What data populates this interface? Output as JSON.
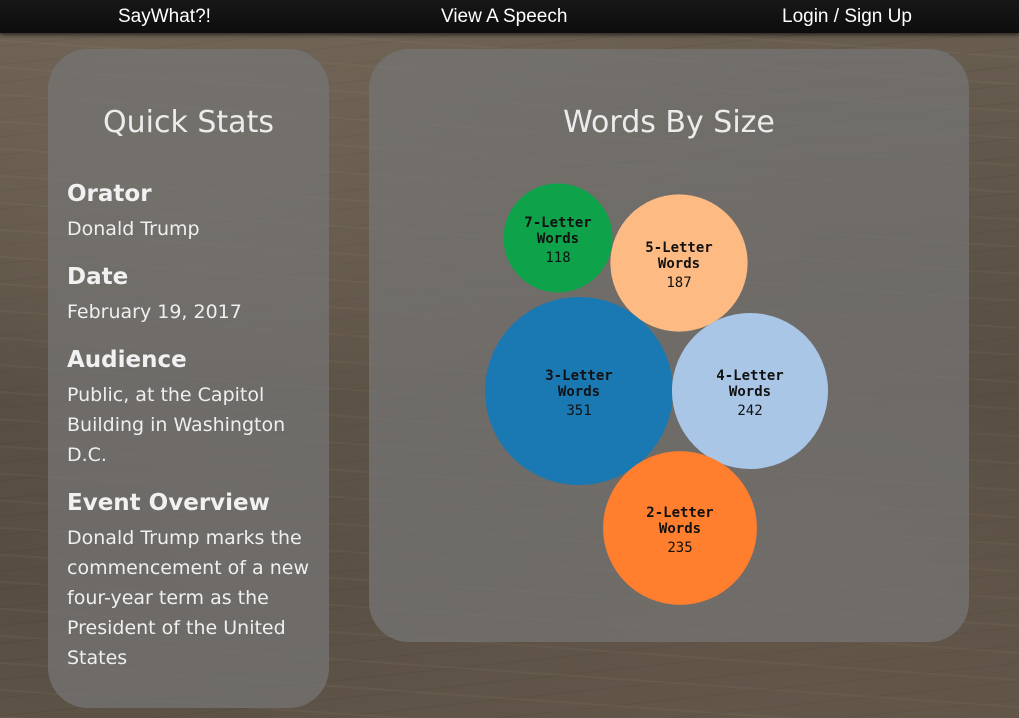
{
  "nav": {
    "brand": "SayWhat?!",
    "view_speech": "View A Speech",
    "login": "Login / Sign Up"
  },
  "stats": {
    "title": "Quick Stats",
    "orator_heading": "Orator",
    "orator": "Donald Trump",
    "date_heading": "Date",
    "date": "February 19, 2017",
    "audience_heading": "Audience",
    "audience": "Public, at the Capitol Building in Washington D.C.",
    "overview_heading": "Event Overview",
    "overview": "Donald Trump marks the commencement of a new four-year term as the President of the United States"
  },
  "chart_title": "Words By Size",
  "chart_data": {
    "type": "bubble",
    "title": "Words By Size",
    "series": [
      {
        "label_line1": "7-Letter",
        "label_line2": "Words",
        "value": 118,
        "color": "#0ea34a"
      },
      {
        "label_line1": "5-Letter",
        "label_line2": "Words",
        "value": 187,
        "color": "#fdbb83"
      },
      {
        "label_line1": "3-Letter",
        "label_line2": "Words",
        "value": 351,
        "color": "#1a78b2"
      },
      {
        "label_line1": "4-Letter",
        "label_line2": "Words",
        "value": 242,
        "color": "#aac6e6"
      },
      {
        "label_line1": "2-Letter",
        "label_line2": "Words",
        "value": 235,
        "color": "#ff7f2e"
      }
    ]
  }
}
